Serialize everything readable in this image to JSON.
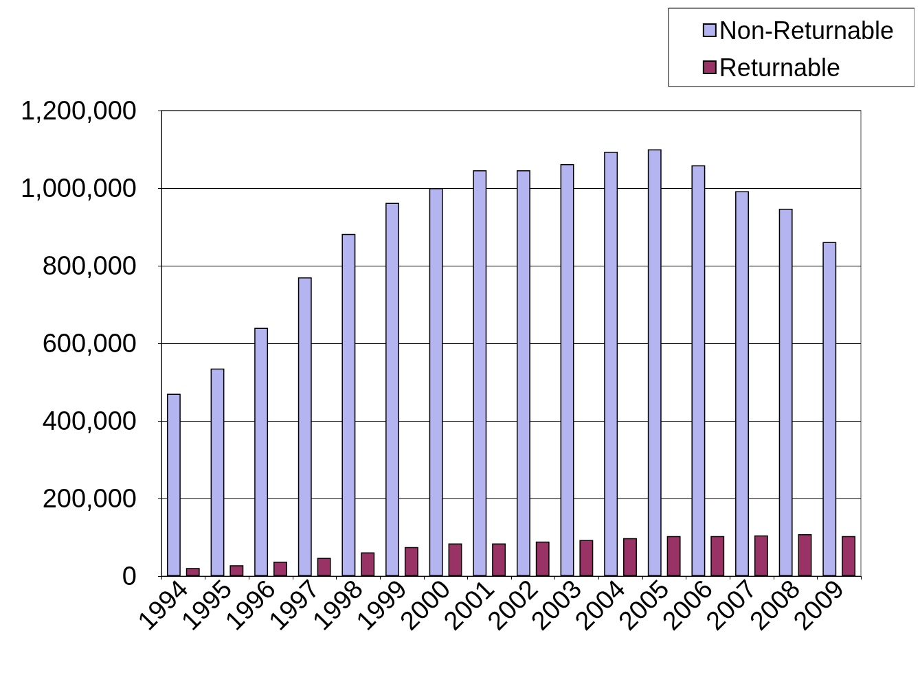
{
  "chart_data": {
    "type": "bar",
    "categories": [
      "1994",
      "1995",
      "1996",
      "1997",
      "1998",
      "1999",
      "2000",
      "2001",
      "2002",
      "2003",
      "2004",
      "2005",
      "2006",
      "2007",
      "2008",
      "2009"
    ],
    "series": [
      {
        "name": "Non-Returnable",
        "color": "#b4b4f0",
        "values": [
          470000,
          535000,
          640000,
          770000,
          882000,
          962000,
          1000000,
          1046000,
          1046000,
          1062000,
          1094000,
          1100000,
          1059000,
          992000,
          947000,
          861000
        ]
      },
      {
        "name": "Returnable",
        "color": "#993366",
        "values": [
          21000,
          28000,
          37000,
          47000,
          61000,
          75000,
          84000,
          84000,
          89000,
          93000,
          98000,
          103000,
          103000,
          105000,
          108000,
          103000
        ]
      }
    ],
    "ylim": [
      0,
      1200000
    ],
    "yticks": [
      0,
      {
        "value": 200000,
        "label": "200,000"
      },
      {
        "value": 400000,
        "label": "400,000"
      },
      {
        "value": 600000,
        "label": "600,000"
      },
      {
        "value": 800000,
        "label": "800,000"
      },
      {
        "value": 1000000,
        "label": "1,000,000"
      },
      {
        "value": 1200000,
        "label": "1,200,000"
      }
    ],
    "grid": "y",
    "legend": "top right"
  }
}
